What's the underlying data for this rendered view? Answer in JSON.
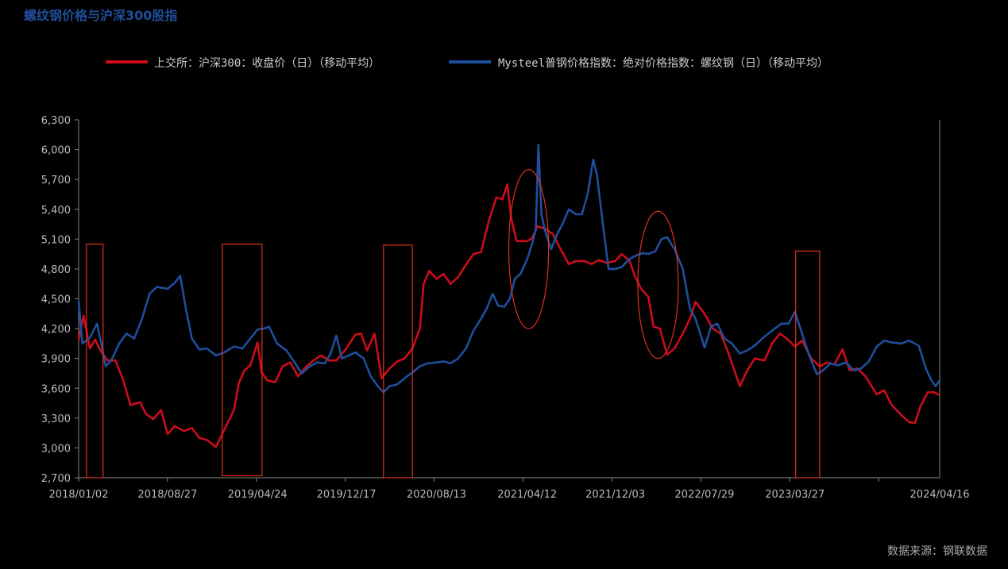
{
  "title": "螺纹钢价格与沪深300股指",
  "source": "数据来源：钢联数据",
  "colors": {
    "background": "#000000",
    "csi300": "#cc0c1b",
    "rebar": "#1f4e9c",
    "annotation": "#e03020"
  },
  "chart_data": {
    "type": "line",
    "title": "螺纹钢价格与沪深300股指",
    "xlabel": "",
    "ylabel": "",
    "ylim": [
      2700,
      6300
    ],
    "y_ticks": [
      "2,700",
      "3,000",
      "3,300",
      "3,600",
      "3,900",
      "4,200",
      "4,500",
      "4,800",
      "5,100",
      "5,400",
      "5,700",
      "6,000",
      "6,300"
    ],
    "x_range": [
      "2018/01/02",
      "2024/04/16"
    ],
    "x_ticks": [
      "2018/01/02",
      "2018/08/27",
      "2019/04/24",
      "2019/12/17",
      "2020/08/13",
      "2021/04/12",
      "2021/12/03",
      "2022/07/29",
      "2023/03/27",
      "2024/04/16"
    ],
    "legend_position": "top",
    "grid": false,
    "series": [
      {
        "name": "上交所：沪深300：收盘价（日）（移动平均）",
        "color": "#cc0c1b",
        "points": [
          [
            "2018/01/02",
            4080
          ],
          [
            "2018/01/15",
            4330
          ],
          [
            "2018/02/01",
            4000
          ],
          [
            "2018/02/15",
            4090
          ],
          [
            "2018/03/01",
            3980
          ],
          [
            "2018/03/20",
            3880
          ],
          [
            "2018/04/10",
            3880
          ],
          [
            "2018/05/01",
            3680
          ],
          [
            "2018/05/20",
            3430
          ],
          [
            "2018/06/15",
            3460
          ],
          [
            "2018/07/01",
            3340
          ],
          [
            "2018/07/20",
            3290
          ],
          [
            "2018/08/10",
            3380
          ],
          [
            "2018/08/27",
            3140
          ],
          [
            "2018/09/15",
            3220
          ],
          [
            "2018/10/10",
            3170
          ],
          [
            "2018/10/31",
            3200
          ],
          [
            "2018/11/20",
            3100
          ],
          [
            "2018/12/10",
            3080
          ],
          [
            "2019/01/03",
            3010
          ],
          [
            "2019/01/25",
            3180
          ],
          [
            "2019/02/20",
            3380
          ],
          [
            "2019/03/05",
            3650
          ],
          [
            "2019/03/20",
            3780
          ],
          [
            "2019/04/05",
            3830
          ],
          [
            "2019/04/24",
            4060
          ],
          [
            "2019/05/05",
            3760
          ],
          [
            "2019/05/20",
            3680
          ],
          [
            "2019/06/10",
            3660
          ],
          [
            "2019/06/30",
            3820
          ],
          [
            "2019/07/20",
            3860
          ],
          [
            "2019/08/10",
            3720
          ],
          [
            "2019/09/01",
            3820
          ],
          [
            "2019/09/20",
            3880
          ],
          [
            "2019/10/10",
            3930
          ],
          [
            "2019/10/31",
            3880
          ],
          [
            "2019/11/20",
            3880
          ],
          [
            "2019/12/17",
            4000
          ],
          [
            "2020/01/10",
            4140
          ],
          [
            "2020/01/25",
            4150
          ],
          [
            "2020/02/10",
            3980
          ],
          [
            "2020/03/01",
            4150
          ],
          [
            "2020/03/20",
            3700
          ],
          [
            "2020/04/10",
            3800
          ],
          [
            "2020/05/01",
            3870
          ],
          [
            "2020/05/20",
            3900
          ],
          [
            "2020/06/10",
            4000
          ],
          [
            "2020/06/30",
            4200
          ],
          [
            "2020/07/10",
            4650
          ],
          [
            "2020/07/25",
            4780
          ],
          [
            "2020/08/13",
            4700
          ],
          [
            "2020/09/01",
            4750
          ],
          [
            "2020/09/20",
            4650
          ],
          [
            "2020/10/10",
            4720
          ],
          [
            "2020/11/01",
            4850
          ],
          [
            "2020/11/20",
            4950
          ],
          [
            "2020/12/10",
            4970
          ],
          [
            "2021/01/01",
            5300
          ],
          [
            "2021/01/20",
            5520
          ],
          [
            "2021/02/05",
            5500
          ],
          [
            "2021/02/18",
            5650
          ],
          [
            "2021/03/01",
            5300
          ],
          [
            "2021/03/15",
            5080
          ],
          [
            "2021/04/12",
            5080
          ],
          [
            "2021/04/25",
            5110
          ],
          [
            "2021/05/10",
            5230
          ],
          [
            "2021/06/01",
            5200
          ],
          [
            "2021/06/20",
            5150
          ],
          [
            "2021/07/10",
            5000
          ],
          [
            "2021/08/01",
            4850
          ],
          [
            "2021/08/20",
            4880
          ],
          [
            "2021/09/10",
            4880
          ],
          [
            "2021/10/01",
            4850
          ],
          [
            "2021/10/20",
            4890
          ],
          [
            "2021/11/10",
            4860
          ],
          [
            "2021/12/03",
            4880
          ],
          [
            "2021/12/20",
            4950
          ],
          [
            "2022/01/10",
            4880
          ],
          [
            "2022/01/25",
            4720
          ],
          [
            "2022/02/10",
            4600
          ],
          [
            "2022/03/01",
            4520
          ],
          [
            "2022/03/15",
            4220
          ],
          [
            "2022/04/01",
            4200
          ],
          [
            "2022/04/20",
            3940
          ],
          [
            "2022/05/10",
            4000
          ],
          [
            "2022/06/01",
            4150
          ],
          [
            "2022/06/20",
            4300
          ],
          [
            "2022/07/05",
            4470
          ],
          [
            "2022/07/29",
            4350
          ],
          [
            "2022/08/20",
            4200
          ],
          [
            "2022/09/10",
            4150
          ],
          [
            "2022/10/01",
            3950
          ],
          [
            "2022/10/31",
            3620
          ],
          [
            "2022/11/20",
            3780
          ],
          [
            "2022/12/10",
            3900
          ],
          [
            "2023/01/05",
            3880
          ],
          [
            "2023/01/25",
            4050
          ],
          [
            "2023/02/15",
            4150
          ],
          [
            "2023/03/05",
            4100
          ],
          [
            "2023/03/27",
            4020
          ],
          [
            "2023/04/15",
            4080
          ],
          [
            "2023/05/10",
            3900
          ],
          [
            "2023/06/01",
            3820
          ],
          [
            "2023/06/20",
            3860
          ],
          [
            "2023/07/10",
            3840
          ],
          [
            "2023/08/01",
            3990
          ],
          [
            "2023/08/20",
            3780
          ],
          [
            "2023/09/10",
            3800
          ],
          [
            "2023/10/01",
            3720
          ],
          [
            "2023/10/31",
            3540
          ],
          [
            "2023/11/20",
            3580
          ],
          [
            "2023/12/10",
            3430
          ],
          [
            "2024/01/05",
            3330
          ],
          [
            "2024/01/25",
            3260
          ],
          [
            "2024/02/10",
            3250
          ],
          [
            "2024/02/25",
            3420
          ],
          [
            "2024/03/15",
            3560
          ],
          [
            "2024/04/01",
            3560
          ],
          [
            "2024/04/16",
            3530
          ]
        ]
      },
      {
        "name": "Mysteel普钢价格指数：绝对价格指数：螺纹钢（日）（移动平均）",
        "color": "#1f4e9c",
        "points": [
          [
            "2018/01/02",
            4480
          ],
          [
            "2018/01/12",
            4050
          ],
          [
            "2018/02/01",
            4110
          ],
          [
            "2018/02/20",
            4250
          ],
          [
            "2018/03/05",
            4020
          ],
          [
            "2018/03/15",
            3820
          ],
          [
            "2018/03/30",
            3880
          ],
          [
            "2018/04/20",
            4050
          ],
          [
            "2018/05/10",
            4150
          ],
          [
            "2018/05/30",
            4100
          ],
          [
            "2018/06/20",
            4300
          ],
          [
            "2018/07/10",
            4550
          ],
          [
            "2018/07/30",
            4620
          ],
          [
            "2018/08/27",
            4600
          ],
          [
            "2018/09/15",
            4660
          ],
          [
            "2018/09/30",
            4730
          ],
          [
            "2018/10/15",
            4400
          ],
          [
            "2018/10/31",
            4100
          ],
          [
            "2018/11/20",
            3990
          ],
          [
            "2018/12/10",
            4000
          ],
          [
            "2019/01/03",
            3930
          ],
          [
            "2019/01/25",
            3960
          ],
          [
            "2019/02/20",
            4020
          ],
          [
            "2019/03/15",
            4000
          ],
          [
            "2019/04/05",
            4100
          ],
          [
            "2019/04/24",
            4190
          ],
          [
            "2019/05/10",
            4200
          ],
          [
            "2019/05/25",
            4220
          ],
          [
            "2019/06/15",
            4050
          ],
          [
            "2019/07/10",
            3980
          ],
          [
            "2019/07/30",
            3870
          ],
          [
            "2019/08/20",
            3750
          ],
          [
            "2019/09/10",
            3820
          ],
          [
            "2019/09/30",
            3860
          ],
          [
            "2019/10/20",
            3850
          ],
          [
            "2019/11/05",
            3950
          ],
          [
            "2019/11/20",
            4130
          ],
          [
            "2019/12/05",
            3900
          ],
          [
            "2019/12/17",
            3920
          ],
          [
            "2020/01/10",
            3960
          ],
          [
            "2020/02/01",
            3900
          ],
          [
            "2020/02/20",
            3720
          ],
          [
            "2020/03/10",
            3620
          ],
          [
            "2020/03/25",
            3560
          ],
          [
            "2020/04/10",
            3620
          ],
          [
            "2020/05/01",
            3640
          ],
          [
            "2020/05/20",
            3700
          ],
          [
            "2020/06/10",
            3760
          ],
          [
            "2020/06/30",
            3820
          ],
          [
            "2020/07/20",
            3850
          ],
          [
            "2020/08/13",
            3860
          ],
          [
            "2020/09/01",
            3870
          ],
          [
            "2020/09/20",
            3850
          ],
          [
            "2020/10/10",
            3900
          ],
          [
            "2020/10/31",
            4000
          ],
          [
            "2020/11/20",
            4180
          ],
          [
            "2020/12/10",
            4300
          ],
          [
            "2020/12/25",
            4400
          ],
          [
            "2021/01/10",
            4550
          ],
          [
            "2021/01/25",
            4430
          ],
          [
            "2021/02/10",
            4420
          ],
          [
            "2021/02/25",
            4500
          ],
          [
            "2021/03/10",
            4700
          ],
          [
            "2021/03/25",
            4750
          ],
          [
            "2021/04/12",
            4900
          ],
          [
            "2021/04/25",
            5050
          ],
          [
            "2021/05/05",
            5200
          ],
          [
            "2021/05/12",
            6050
          ],
          [
            "2021/05/20",
            5350
          ],
          [
            "2021/05/30",
            5180
          ],
          [
            "2021/06/15",
            5000
          ],
          [
            "2021/07/01",
            5150
          ],
          [
            "2021/07/15",
            5250
          ],
          [
            "2021/08/01",
            5400
          ],
          [
            "2021/08/20",
            5350
          ],
          [
            "2021/09/05",
            5350
          ],
          [
            "2021/09/20",
            5550
          ],
          [
            "2021/10/05",
            5900
          ],
          [
            "2021/10/15",
            5750
          ],
          [
            "2021/10/31",
            5250
          ],
          [
            "2021/11/15",
            4800
          ],
          [
            "2021/12/03",
            4800
          ],
          [
            "2021/12/20",
            4820
          ],
          [
            "2022/01/10",
            4900
          ],
          [
            "2022/01/30",
            4940
          ],
          [
            "2022/02/15",
            4960
          ],
          [
            "2022/03/01",
            4950
          ],
          [
            "2022/03/20",
            4980
          ],
          [
            "2022/04/05",
            5100
          ],
          [
            "2022/04/20",
            5120
          ],
          [
            "2022/05/10",
            5000
          ],
          [
            "2022/06/01",
            4800
          ],
          [
            "2022/06/20",
            4400
          ],
          [
            "2022/07/05",
            4300
          ],
          [
            "2022/07/29",
            4010
          ],
          [
            "2022/08/15",
            4220
          ],
          [
            "2022/09/01",
            4250
          ],
          [
            "2022/09/20",
            4100
          ],
          [
            "2022/10/10",
            4050
          ],
          [
            "2022/10/31",
            3950
          ],
          [
            "2022/11/20",
            3980
          ],
          [
            "2022/12/10",
            4030
          ],
          [
            "2023/01/05",
            4120
          ],
          [
            "2023/02/01",
            4200
          ],
          [
            "2023/02/20",
            4250
          ],
          [
            "2023/03/10",
            4250
          ],
          [
            "2023/03/27",
            4370
          ],
          [
            "2023/04/15",
            4150
          ],
          [
            "2023/05/05",
            3920
          ],
          [
            "2023/05/25",
            3740
          ],
          [
            "2023/06/10",
            3780
          ],
          [
            "2023/06/30",
            3850
          ],
          [
            "2023/07/20",
            3830
          ],
          [
            "2023/08/10",
            3860
          ],
          [
            "2023/08/30",
            3780
          ],
          [
            "2023/09/20",
            3800
          ],
          [
            "2023/10/10",
            3870
          ],
          [
            "2023/10/31",
            4020
          ],
          [
            "2023/11/20",
            4080
          ],
          [
            "2023/12/10",
            4060
          ],
          [
            "2024/01/05",
            4050
          ],
          [
            "2024/01/25",
            4080
          ],
          [
            "2024/02/20",
            4030
          ],
          [
            "2024/03/10",
            3800
          ],
          [
            "2024/03/25",
            3680
          ],
          [
            "2024/04/05",
            3620
          ],
          [
            "2024/04/16",
            3680
          ]
        ]
      }
    ],
    "annotations": [
      {
        "shape": "rectangle",
        "from": "2018/01/23",
        "to": "2018/03/08",
        "y": [
          2700,
          5050
        ]
      },
      {
        "shape": "rectangle",
        "from": "2019/01/20",
        "to": "2019/05/06",
        "y": [
          2720,
          5050
        ]
      },
      {
        "shape": "rectangle",
        "from": "2020/03/25",
        "to": "2020/06/10",
        "y": [
          2700,
          5040
        ]
      },
      {
        "shape": "ellipse",
        "from": "2021/02/22",
        "to": "2021/06/08",
        "y": [
          4200,
          5800
        ]
      },
      {
        "shape": "ellipse",
        "from": "2022/02/01",
        "to": "2022/05/20",
        "y": [
          3900,
          5380
        ]
      },
      {
        "shape": "rectangle",
        "from": "2023/03/29",
        "to": "2023/06/01",
        "y": [
          2700,
          4980
        ]
      }
    ]
  }
}
